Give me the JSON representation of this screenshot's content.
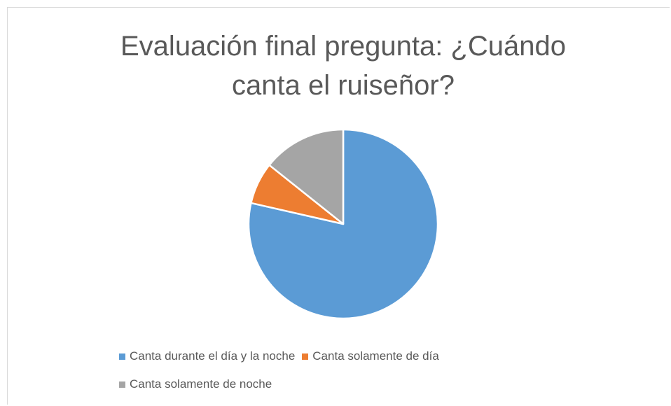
{
  "chart_data": {
    "type": "pie",
    "title": "Evaluación final pregunta: ¿Cuándo canta el ruiseñor?",
    "categories": [
      "Canta durante el día y la noche",
      "Canta solamente de día",
      "Canta solamente de noche"
    ],
    "values": [
      11,
      1,
      2
    ],
    "colors": [
      "#5b9bd5",
      "#ed7d31",
      "#a5a5a5"
    ],
    "legend": "bottom"
  }
}
